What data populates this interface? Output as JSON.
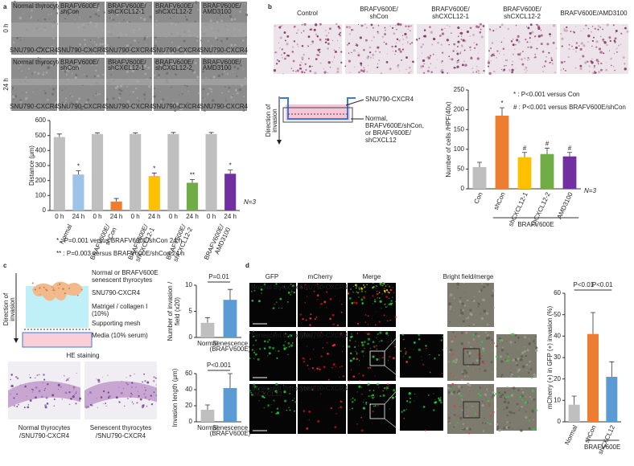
{
  "panel_labels": [
    "a",
    "b",
    "c",
    "d"
  ],
  "a": {
    "rows": [
      "0 h",
      "24 h"
    ],
    "columns": [
      [
        "Normal thyrocytes"
      ],
      [
        "BRAFV600E/",
        "shCon"
      ],
      [
        "BRAFV600E/",
        "shCXCL12-1"
      ],
      [
        "BRAFV600E/",
        "shCXCL12-2"
      ],
      [
        "BRAFV600E/",
        "AMD3100"
      ]
    ],
    "image_label": "SNU790-CXCR4"
  },
  "b": {
    "columns": [
      [
        "Control"
      ],
      [
        "BRAFV600E/",
        "shCon"
      ],
      [
        "BRAFV600E/",
        "shCXCL12-1"
      ],
      [
        "BRAFV600E/",
        "shCXCL12-2"
      ],
      [
        "BRAFV600E/AMD3100"
      ]
    ],
    "diagram": {
      "direction": [
        "Direction of",
        "invasion"
      ],
      "top_label": "SNU790-CXCR4",
      "bottom_label": [
        "Normal,",
        "BRAFV600E/shCon,",
        "or BRAFV600E/",
        "shCXCL12"
      ]
    }
  },
  "c": {
    "diagram": {
      "direction": [
        "Direction of",
        "invasion"
      ],
      "cells": [
        "Normal or BRAFV600E",
        "senescent thyrocytes"
      ],
      "tumor": "SNU790-CXCR4",
      "matrigel": [
        "Matrigel / collagen I",
        "(10%)"
      ],
      "mesh": "Supporting mesh",
      "media": "Media (10% serum)"
    },
    "staining_title": "HE staining",
    "captions": [
      [
        "Normal thyrocytes",
        "/SNU790-CXCR4"
      ],
      [
        "Senescent thyrocytes",
        "/SNU790-CXCR4"
      ]
    ]
  },
  "d": {
    "headers": [
      "GFP",
      "mCherry",
      "Merge",
      "Bright field/merge"
    ],
    "gfp_rows": [
      [
        "Normal thyrocytes"
      ],
      [
        "Senescent thyrocytes"
      ],
      [
        "Senescent thyrocytes/",
        "shCXCL12"
      ]
    ],
    "mcherry_row": "SNU790-CXCR4"
  },
  "chart_data": [
    {
      "type": "bar",
      "y_label": "Distance (μm)",
      "ylim": [
        0,
        600
      ],
      "yticks": [
        0,
        100,
        200,
        300,
        400,
        500,
        600
      ],
      "categories": [
        "0 h",
        "24 h",
        "0 h",
        "24 h",
        "0 h",
        "24 h",
        "0 h",
        "24 h",
        "0 h",
        "24 h"
      ],
      "groups": [
        "Normal",
        [
          "BRAFV600E/",
          "shCon"
        ],
        [
          "BRAFV600E/",
          "shCXCL12-1"
        ],
        [
          "BRAFV600E/",
          "shCXCL12-2"
        ],
        [
          "BRAFV600E/",
          "AMD3100"
        ]
      ],
      "values": [
        490,
        240,
        510,
        60,
        510,
        230,
        510,
        185,
        510,
        245
      ],
      "errors": [
        20,
        25,
        8,
        20,
        8,
        20,
        10,
        22,
        10,
        25
      ],
      "colors": [
        "#bfbfbf",
        "#9dc3e6",
        "#bfbfbf",
        "#ed7d31",
        "#bfbfbf",
        "#ffc000",
        "#bfbfbf",
        "#70ad47",
        "#bfbfbf",
        "#7030a0"
      ],
      "annotations": [
        null,
        "*",
        null,
        null,
        null,
        "*",
        null,
        "**",
        null,
        "*"
      ],
      "n_label": "N=3",
      "footnotes": [
        "* : P=0.001 versus BRAFV600E/shCon 24 h",
        "** : P=0.003 versus BRAFV600E/shCon 24 h"
      ]
    },
    {
      "type": "bar",
      "y_label": "Number of cells /HPF(40x)",
      "ylim": [
        0,
        250
      ],
      "yticks": [
        0,
        50,
        100,
        150,
        200,
        250
      ],
      "categories": [
        "Con",
        "shCon",
        "shCXCL12-1",
        "shCXCL12-2",
        "AMD3100"
      ],
      "values": [
        55,
        185,
        80,
        88,
        82
      ],
      "errors": [
        12,
        20,
        12,
        15,
        10
      ],
      "colors": [
        "#bfbfbf",
        "#ed7d31",
        "#ffc000",
        "#70ad47",
        "#7030a0"
      ],
      "annotations": [
        null,
        "*",
        "#",
        "#",
        "#"
      ],
      "group_label": "BRAFV600E",
      "n_label": "N=3",
      "footnotes": [
        "* : P<0.001 versus Con",
        "# : P<0.001 versus BRAFV600E/shCon"
      ]
    },
    {
      "type": "bar",
      "y_label": [
        "Number of invasion /",
        "field (x20)"
      ],
      "ylim": [
        0,
        10
      ],
      "yticks": [
        0,
        5,
        10
      ],
      "categories": [
        [
          "Normal"
        ],
        [
          "Senescence",
          "(BRAFV600E)"
        ]
      ],
      "values": [
        2.8,
        7.2
      ],
      "errors": [
        1,
        2
      ],
      "colors": [
        "#bfbfbf",
        "#5b9bd5"
      ],
      "p_labels": [
        "P=0.01"
      ]
    },
    {
      "type": "bar",
      "y_label": "Invasion length (μm)",
      "ylim": [
        0,
        60
      ],
      "yticks": [
        0,
        20,
        40,
        60
      ],
      "categories": [
        [
          "Normal"
        ],
        [
          "Senescence",
          "(BRAFV600E)"
        ]
      ],
      "values": [
        15,
        42
      ],
      "errors": [
        6,
        18
      ],
      "colors": [
        "#bfbfbf",
        "#5b9bd5"
      ],
      "p_labels": [
        "P<0.001"
      ]
    },
    {
      "type": "bar",
      "y_label": "mCherry (+) in GFP (+) invasion (%)",
      "ylim": [
        0,
        60
      ],
      "yticks": [
        0,
        10,
        20,
        30,
        40,
        50,
        60
      ],
      "categories": [
        "Normal",
        "shCon",
        "shCXCL12"
      ],
      "values": [
        8,
        41,
        21
      ],
      "errors": [
        4,
        10,
        7
      ],
      "colors": [
        "#bfbfbf",
        "#ed7d31",
        "#5b9bd5"
      ],
      "group_label": "BRAFV600E",
      "p_labels": [
        "P<0.01",
        "P<0.01"
      ]
    }
  ]
}
